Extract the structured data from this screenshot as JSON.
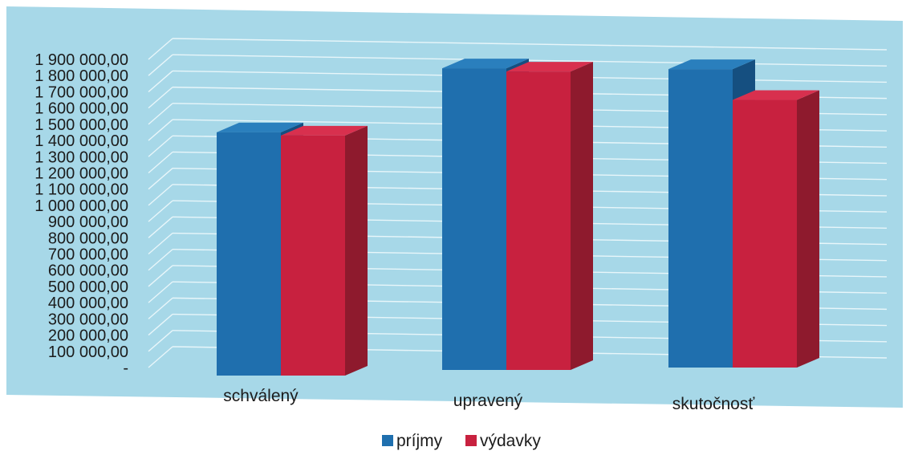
{
  "chart_data": {
    "type": "bar",
    "categories": [
      "schválený",
      "upravený",
      "skutočnosť"
    ],
    "series": [
      {
        "name": "príjmy",
        "values": [
          1500000,
          1860000,
          1840000
        ]
      },
      {
        "name": "výdavky",
        "values": [
          1480000,
          1840000,
          1650000
        ]
      }
    ],
    "y_tick_labels": [
      "-",
      "100 000,00",
      "200 000,00",
      "300 000,00",
      "400 000,00",
      "500 000,00",
      "600 000,00",
      "700 000,00",
      "800 000,00",
      "900 000,00",
      "1 000 000,00",
      "1 100 000,00",
      "1 200 000,00",
      "1 300 000,00",
      "1 400 000,00",
      "1 500 000,00",
      "1 600 000,00",
      "1 700 000,00",
      "1 800 000,00",
      "1 900 000,00"
    ],
    "ylim": [
      0,
      1900000
    ],
    "grid": true,
    "three_d": true,
    "legend_position": "bottom",
    "colors": {
      "plot_background": "#a7d8e8",
      "gridline": "#e8f6fa",
      "series": [
        "#1f6fae",
        "#c8213f"
      ],
      "series_dark": [
        "#154f80",
        "#8e1a2d"
      ],
      "series_top": [
        "#2a7fbd",
        "#d8304e"
      ]
    }
  }
}
